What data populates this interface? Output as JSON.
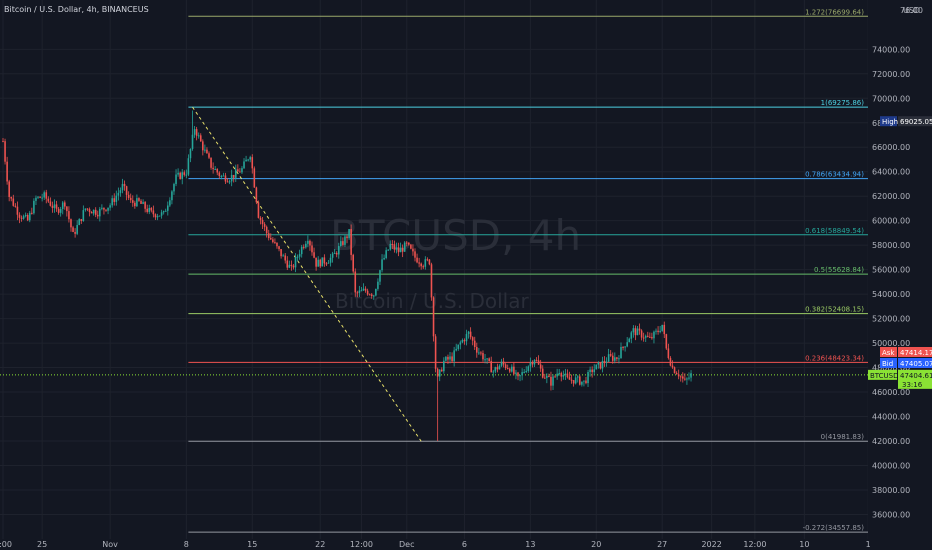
{
  "header": {
    "symbol_title": "Bitcoin / U.S. Dollar, 4h, BINANCEUS"
  },
  "watermark": {
    "symbol": "BTCUSD, 4h",
    "description": "Bitcoin / U.S. Dollar"
  },
  "axis": {
    "currency": "USD"
  },
  "colors": {
    "background": "#131722",
    "grid": "#1e222d",
    "text": "#b2b5be",
    "up": "#26a69a",
    "down": "#ef5350",
    "last_price": "#8ae234"
  },
  "chart_data": {
    "type": "candlestick",
    "timeframe": "4h",
    "ylim": [
      34500,
      78000
    ],
    "y_ticks": [
      36000,
      38000,
      40000,
      42000,
      44000,
      46000,
      48000,
      50000,
      52000,
      54000,
      56000,
      58000,
      60000,
      62000,
      64000,
      66000,
      68000,
      70000,
      72000,
      74000
    ],
    "y_tick_labels": [
      "36000.00",
      "38000.00",
      "40000.00",
      "42000.00",
      "44000.00",
      "46000.00",
      "48000.00",
      "50000.00",
      "52000.00",
      "54000.00",
      "56000.00",
      "58000.00",
      "60000.00",
      "62000.00",
      "64000.00",
      "66000.00",
      "68000.00",
      "70000.00",
      "72000.00",
      "74000.00"
    ],
    "y_top_label": "76.00",
    "x_ticks": [
      {
        "bar": 0,
        "label": "0:00"
      },
      {
        "bar": 19,
        "label": "25"
      },
      {
        "bar": 52,
        "label": "Nov"
      },
      {
        "bar": 89,
        "label": "8"
      },
      {
        "bar": 121,
        "label": "15"
      },
      {
        "bar": 154,
        "label": "22"
      },
      {
        "bar": 174,
        "label": "12:00"
      },
      {
        "bar": 196,
        "label": "Dec"
      },
      {
        "bar": 224,
        "label": "6"
      },
      {
        "bar": 256,
        "label": "13"
      },
      {
        "bar": 288,
        "label": "20"
      },
      {
        "bar": 320,
        "label": "27"
      },
      {
        "bar": 344,
        "label": "2022"
      },
      {
        "bar": 365,
        "label": "12:00"
      },
      {
        "bar": 389,
        "label": "10"
      },
      {
        "bar": 420,
        "label": "1"
      }
    ],
    "price_path": [
      [
        0,
        66500
      ],
      [
        3,
        62000
      ],
      [
        8,
        60500
      ],
      [
        12,
        60000
      ],
      [
        16,
        61800
      ],
      [
        20,
        62000
      ],
      [
        26,
        60800
      ],
      [
        30,
        61500
      ],
      [
        34,
        58800
      ],
      [
        40,
        61000
      ],
      [
        46,
        60700
      ],
      [
        52,
        61300
      ],
      [
        58,
        62800
      ],
      [
        62,
        61500
      ],
      [
        66,
        61500
      ],
      [
        72,
        60600
      ],
      [
        78,
        60500
      ],
      [
        84,
        63500
      ],
      [
        89,
        64000
      ],
      [
        93,
        67600
      ],
      [
        97,
        66000
      ],
      [
        101,
        64500
      ],
      [
        106,
        63600
      ],
      [
        110,
        63500
      ],
      [
        116,
        64200
      ],
      [
        120,
        65500
      ],
      [
        124,
        60500
      ],
      [
        128,
        59000
      ],
      [
        132,
        58000
      ],
      [
        136,
        57000
      ],
      [
        140,
        56000
      ],
      [
        144,
        57500
      ],
      [
        148,
        58700
      ],
      [
        152,
        56500
      ],
      [
        156,
        56700
      ],
      [
        160,
        57000
      ],
      [
        164,
        58000
      ],
      [
        168,
        59000
      ],
      [
        171,
        54000
      ],
      [
        176,
        54300
      ],
      [
        180,
        54000
      ],
      [
        184,
        56600
      ],
      [
        188,
        58000
      ],
      [
        192,
        57500
      ],
      [
        196,
        58000
      ],
      [
        200,
        57000
      ],
      [
        204,
        56500
      ],
      [
        207,
        56700
      ],
      [
        210,
        48000
      ],
      [
        211,
        47000
      ],
      [
        214,
        48500
      ],
      [
        218,
        48800
      ],
      [
        222,
        50000
      ],
      [
        226,
        50800
      ],
      [
        230,
        49500
      ],
      [
        234,
        48700
      ],
      [
        238,
        47700
      ],
      [
        242,
        48300
      ],
      [
        246,
        48000
      ],
      [
        250,
        47000
      ],
      [
        254,
        48000
      ],
      [
        258,
        48800
      ],
      [
        262,
        47500
      ],
      [
        266,
        46800
      ],
      [
        270,
        47800
      ],
      [
        274,
        47000
      ],
      [
        278,
        47000
      ],
      [
        282,
        46800
      ],
      [
        286,
        47800
      ],
      [
        290,
        48200
      ],
      [
        294,
        48800
      ],
      [
        298,
        48800
      ],
      [
        302,
        50000
      ],
      [
        306,
        51000
      ],
      [
        310,
        50700
      ],
      [
        314,
        50300
      ],
      [
        318,
        51000
      ],
      [
        320,
        51500
      ],
      [
        322,
        49500
      ],
      [
        325,
        48000
      ],
      [
        328,
        47500
      ],
      [
        331,
        46800
      ],
      [
        334,
        47400
      ]
    ],
    "high": {
      "value": 69025.05,
      "label": "High",
      "text": "69025.05"
    },
    "ask": {
      "label": "Ask",
      "value": 47414.17,
      "text": "47414.17"
    },
    "bid": {
      "label": "Bid",
      "value": 47405.07,
      "text": "47405.07"
    },
    "last": {
      "label": "BTCUSD",
      "value": 47404.61,
      "text": "47404.61",
      "countdown": "33:16"
    },
    "fibonacci": {
      "start_bar": 90,
      "high": 69275.86,
      "low": 41981.83,
      "levels": [
        {
          "ratio": 1.272,
          "price": 76699.64,
          "label": "1.272(76699.64)",
          "color": "#9aa86a"
        },
        {
          "ratio": 1,
          "price": 69275.86,
          "label": "1(69275.86)",
          "color": "#4dd0e1"
        },
        {
          "ratio": 0.786,
          "price": 63434.94,
          "label": "0.786(63434.94)",
          "color": "#42a5f5"
        },
        {
          "ratio": 0.618,
          "price": 58849.54,
          "label": "0.618(58849.54)",
          "color": "#26a69a"
        },
        {
          "ratio": 0.5,
          "price": 55628.84,
          "label": "0.5(55628.84)",
          "color": "#66bb6a"
        },
        {
          "ratio": 0.382,
          "price": 52408.15,
          "label": "0.382(52408.15)",
          "color": "#9ccc65"
        },
        {
          "ratio": 0.236,
          "price": 48423.34,
          "label": "0.236(48423.34)",
          "color": "#ef5350"
        },
        {
          "ratio": 0,
          "price": 41981.83,
          "label": "0(41981.83)",
          "color": "#9598a1"
        },
        {
          "ratio": -0.272,
          "price": 34557.85,
          "label": "-0.272(34557.85)",
          "color": "#9598a1"
        }
      ],
      "trend_from": {
        "bar": 92,
        "price": 69275.86
      },
      "trend_to": {
        "bar": 203,
        "price": 41981.83
      }
    }
  }
}
